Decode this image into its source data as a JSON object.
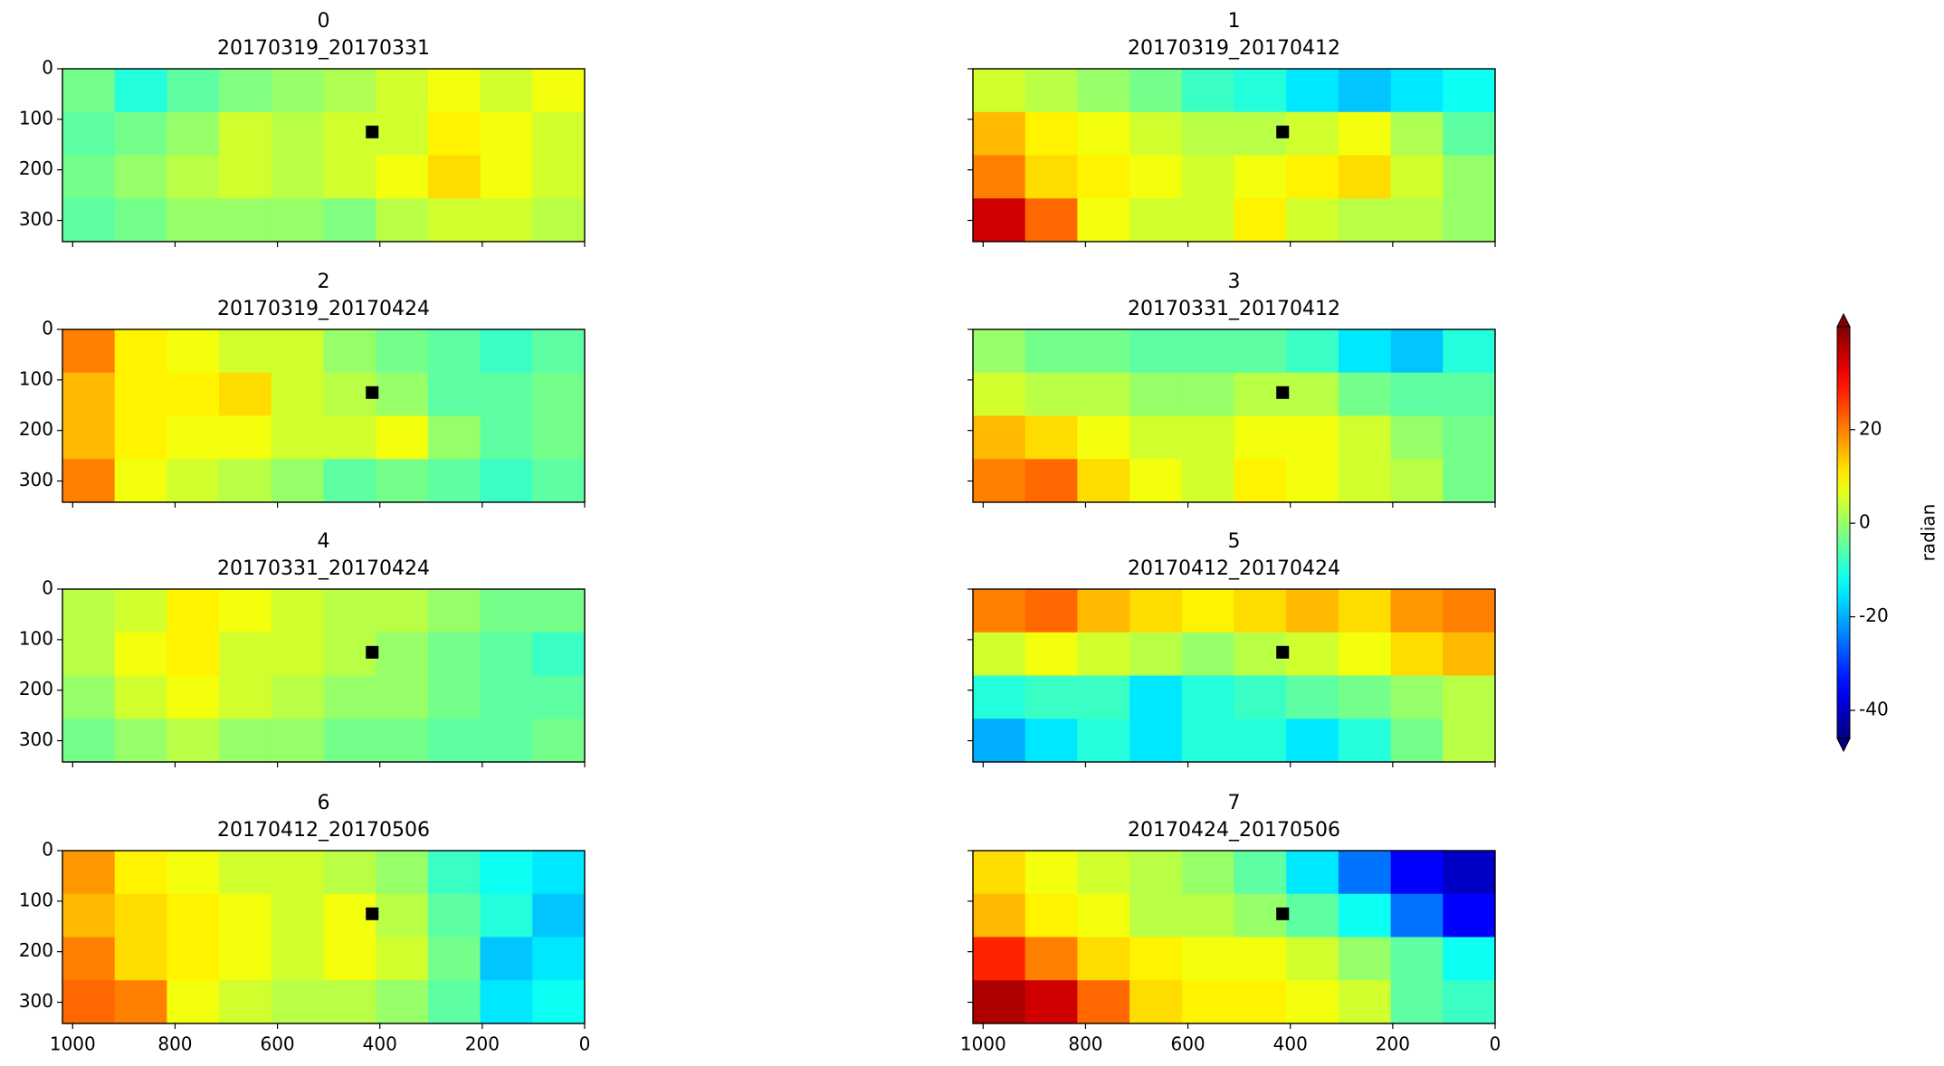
{
  "chart_data": {
    "type": "heatmap",
    "colormap": "jet",
    "xlim": [
      1020,
      0
    ],
    "ylim": [
      342,
      0
    ],
    "xticks": [
      1000,
      800,
      600,
      400,
      200,
      0
    ],
    "yticks": [
      0,
      100,
      200,
      300
    ],
    "clim": [
      -46,
      42
    ],
    "cticks": [
      20,
      0,
      -20,
      -40
    ],
    "colorbar_label": "radian",
    "ref_point": {
      "x": 415,
      "y": 125
    },
    "panels": [
      {
        "title": "0",
        "subtitle": "20170319_20170331",
        "values": [
          [
            -3,
            -10,
            -5,
            -2,
            0,
            2,
            5,
            8,
            5,
            8
          ],
          [
            -5,
            -3,
            0,
            5,
            3,
            5,
            5,
            10,
            8,
            5
          ],
          [
            -3,
            0,
            3,
            5,
            3,
            5,
            8,
            12,
            8,
            5
          ],
          [
            -5,
            -3,
            0,
            0,
            0,
            -2,
            3,
            5,
            5,
            3
          ]
        ]
      },
      {
        "title": "1",
        "subtitle": "20170319_20170412",
        "values": [
          [
            5,
            3,
            0,
            -3,
            -8,
            -10,
            -15,
            -18,
            -15,
            -12
          ],
          [
            15,
            10,
            8,
            5,
            3,
            3,
            5,
            8,
            2,
            -5
          ],
          [
            20,
            12,
            10,
            8,
            5,
            8,
            10,
            12,
            5,
            0
          ],
          [
            35,
            22,
            8,
            5,
            5,
            10,
            5,
            3,
            3,
            0
          ]
        ]
      },
      {
        "title": "2",
        "subtitle": "20170319_20170424",
        "values": [
          [
            20,
            10,
            8,
            5,
            5,
            0,
            -3,
            -5,
            -8,
            -5
          ],
          [
            15,
            10,
            10,
            12,
            5,
            3,
            0,
            -5,
            -5,
            -3
          ],
          [
            15,
            10,
            8,
            8,
            5,
            5,
            8,
            0,
            -5,
            -3
          ],
          [
            20,
            8,
            5,
            3,
            0,
            -5,
            -3,
            -5,
            -8,
            -5
          ]
        ]
      },
      {
        "title": "3",
        "subtitle": "20170331_20170412",
        "values": [
          [
            0,
            -3,
            -3,
            -5,
            -5,
            -5,
            -8,
            -15,
            -18,
            -10
          ],
          [
            5,
            3,
            3,
            0,
            0,
            3,
            3,
            -3,
            -5,
            -5
          ],
          [
            15,
            12,
            8,
            5,
            5,
            8,
            8,
            5,
            0,
            -3
          ],
          [
            20,
            22,
            12,
            8,
            5,
            10,
            8,
            5,
            3,
            -3
          ]
        ]
      },
      {
        "title": "4",
        "subtitle": "20170331_20170424",
        "values": [
          [
            3,
            5,
            10,
            8,
            5,
            3,
            3,
            0,
            -3,
            -3
          ],
          [
            3,
            8,
            10,
            5,
            5,
            3,
            0,
            -3,
            -5,
            -8
          ],
          [
            0,
            5,
            8,
            5,
            3,
            0,
            0,
            -3,
            -5,
            -5
          ],
          [
            -3,
            0,
            3,
            0,
            0,
            -3,
            -3,
            -5,
            -5,
            -3
          ]
        ]
      },
      {
        "title": "5",
        "subtitle": "20170412_20170424",
        "values": [
          [
            20,
            22,
            15,
            12,
            10,
            12,
            15,
            12,
            18,
            20
          ],
          [
            5,
            8,
            5,
            3,
            0,
            3,
            5,
            8,
            12,
            15
          ],
          [
            -10,
            -8,
            -8,
            -15,
            -10,
            -8,
            -5,
            -3,
            0,
            3
          ],
          [
            -20,
            -15,
            -10,
            -15,
            -10,
            -10,
            -15,
            -10,
            -3,
            3
          ]
        ]
      },
      {
        "title": "6",
        "subtitle": "20170412_20170506",
        "values": [
          [
            18,
            10,
            8,
            5,
            5,
            3,
            0,
            -8,
            -12,
            -15
          ],
          [
            15,
            12,
            10,
            8,
            5,
            8,
            3,
            -5,
            -10,
            -18
          ],
          [
            20,
            12,
            10,
            8,
            5,
            8,
            5,
            -3,
            -18,
            -15
          ],
          [
            22,
            20,
            8,
            5,
            3,
            3,
            0,
            -5,
            -15,
            -12
          ]
        ]
      },
      {
        "title": "7",
        "subtitle": "20170424_20170506",
        "values": [
          [
            12,
            8,
            5,
            3,
            0,
            -5,
            -15,
            -25,
            -35,
            -40
          ],
          [
            15,
            10,
            8,
            3,
            3,
            0,
            -5,
            -12,
            -25,
            -35
          ],
          [
            28,
            20,
            12,
            10,
            8,
            8,
            5,
            0,
            -5,
            -12
          ],
          [
            38,
            35,
            22,
            12,
            10,
            10,
            8,
            5,
            -5,
            -8
          ]
        ]
      }
    ]
  }
}
